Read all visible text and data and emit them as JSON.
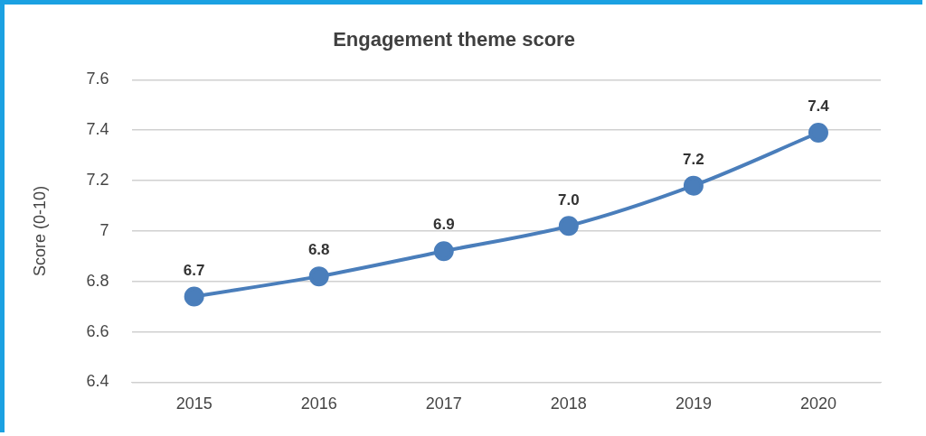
{
  "chart_data": {
    "type": "line",
    "title": "Engagement theme score",
    "ylabel": "Score (0-10)",
    "categories": [
      "2015",
      "2016",
      "2017",
      "2018",
      "2019",
      "2020"
    ],
    "series": [
      {
        "color": "#4a7ebb",
        "values": [
          6.74,
          6.82,
          6.92,
          7.02,
          7.18,
          7.39
        ],
        "value_labels": [
          "6.7",
          "6.8",
          "6.9",
          "7.0",
          "7.2",
          "7.4"
        ]
      }
    ],
    "ylim": [
      6.4,
      7.6
    ],
    "yticks": [
      6.4,
      6.6,
      6.8,
      7,
      7.2,
      7.4,
      7.6
    ],
    "grid": "y",
    "legend": false,
    "marker": "circle",
    "line_style": "solid"
  }
}
